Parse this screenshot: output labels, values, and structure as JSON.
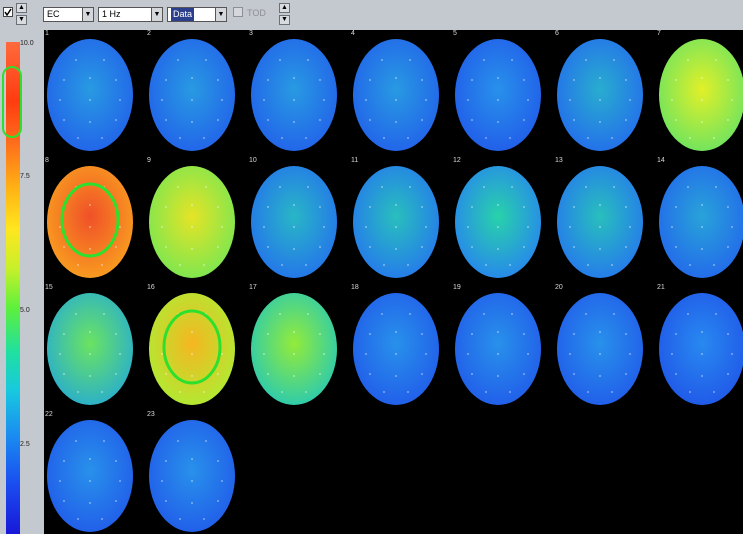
{
  "toolbar": {
    "condition": "EC",
    "frequency": "1 Hz",
    "mode": "Data",
    "tod_label": "TOD"
  },
  "colors": {
    "blue": "#2a68e8",
    "blue_light": "#2a90f0",
    "blue_dark": "#1e4ce0",
    "yellow": "#d8f030",
    "orange": "#f05a28",
    "highlight_ring": "#2ee02e"
  },
  "scale": {
    "ticks": [
      "10.0",
      "7.5",
      "5.0",
      "2.5"
    ]
  },
  "maps": [
    {
      "label": "1",
      "level": 0.2
    },
    {
      "label": "2",
      "level": 0.2
    },
    {
      "label": "3",
      "level": 0.2
    },
    {
      "label": "4",
      "level": 0.2
    },
    {
      "label": "5",
      "level": 0.18
    },
    {
      "label": "6",
      "level": 0.24
    },
    {
      "label": "7",
      "level": 0.6
    },
    {
      "label": "8",
      "level": 0.92
    },
    {
      "label": "9",
      "level": 0.62
    },
    {
      "label": "10",
      "level": 0.26
    },
    {
      "label": "11",
      "level": 0.28
    },
    {
      "label": "12",
      "level": 0.32
    },
    {
      "label": "13",
      "level": 0.28
    },
    {
      "label": "14",
      "level": 0.22
    },
    {
      "label": "15",
      "level": 0.42
    },
    {
      "label": "16",
      "level": 0.7
    },
    {
      "label": "17",
      "level": 0.48
    },
    {
      "label": "18",
      "level": 0.18
    },
    {
      "label": "19",
      "level": 0.18
    },
    {
      "label": "20",
      "level": 0.18
    },
    {
      "label": "21",
      "level": 0.16
    },
    {
      "label": "22",
      "level": 0.18
    },
    {
      "label": "23",
      "level": 0.18
    }
  ]
}
